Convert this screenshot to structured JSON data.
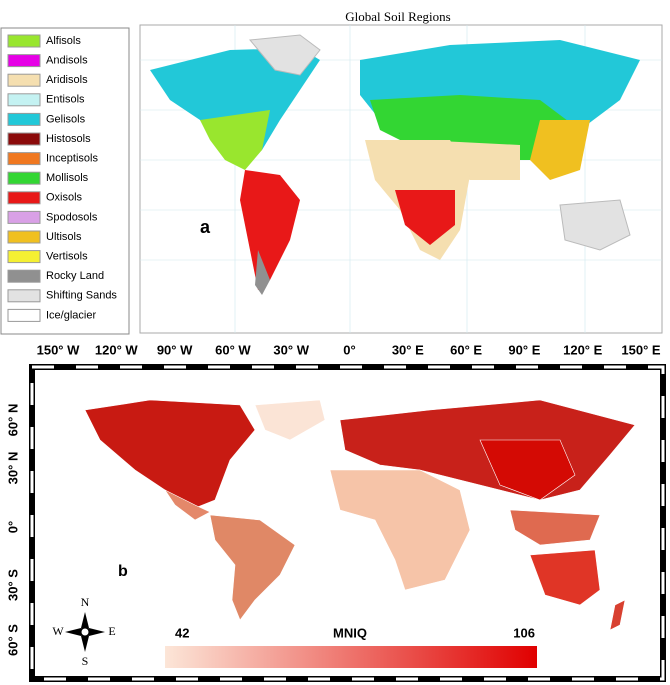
{
  "panel_a": {
    "title": "Global Soil Regions",
    "label": "a",
    "legend": [
      {
        "name": "Alfisols",
        "color": "#99e62e"
      },
      {
        "name": "Andisols",
        "color": "#e600e6"
      },
      {
        "name": "Aridisols",
        "color": "#f5dfb0"
      },
      {
        "name": "Entisols",
        "color": "#c4f2f2"
      },
      {
        "name": "Gelisols",
        "color": "#22c8d8"
      },
      {
        "name": "Histosols",
        "color": "#8b0a0a"
      },
      {
        "name": "Inceptisols",
        "color": "#f07820"
      },
      {
        "name": "Mollisols",
        "color": "#33d633"
      },
      {
        "name": "Oxisols",
        "color": "#e81818"
      },
      {
        "name": "Spodosols",
        "color": "#d9a0e6"
      },
      {
        "name": "Ultisols",
        "color": "#f0c020"
      },
      {
        "name": "Vertisols",
        "color": "#f5f032"
      },
      {
        "name": "Rocky Land",
        "color": "#909090"
      },
      {
        "name": "Shifting Sands",
        "color": "#e2e2e2"
      },
      {
        "name": "Ice/glacier",
        "color": "#ffffff"
      }
    ]
  },
  "longitude_labels": [
    "150° W",
    "120° W",
    "90° W",
    "60° W",
    "30° W",
    "0°",
    "30° E",
    "60° E",
    "90° E",
    "120° E",
    "150° E"
  ],
  "panel_b": {
    "label": "b",
    "latitude_labels": [
      "60° N",
      "30° N",
      "0°",
      "30° S",
      "60° S"
    ],
    "compass": {
      "n": "N",
      "e": "E",
      "s": "S",
      "w": "W"
    },
    "colorbar": {
      "title": "MNIQ",
      "min": 42,
      "max": 106,
      "colors": [
        "#fce6d8",
        "#e00000"
      ]
    }
  }
}
